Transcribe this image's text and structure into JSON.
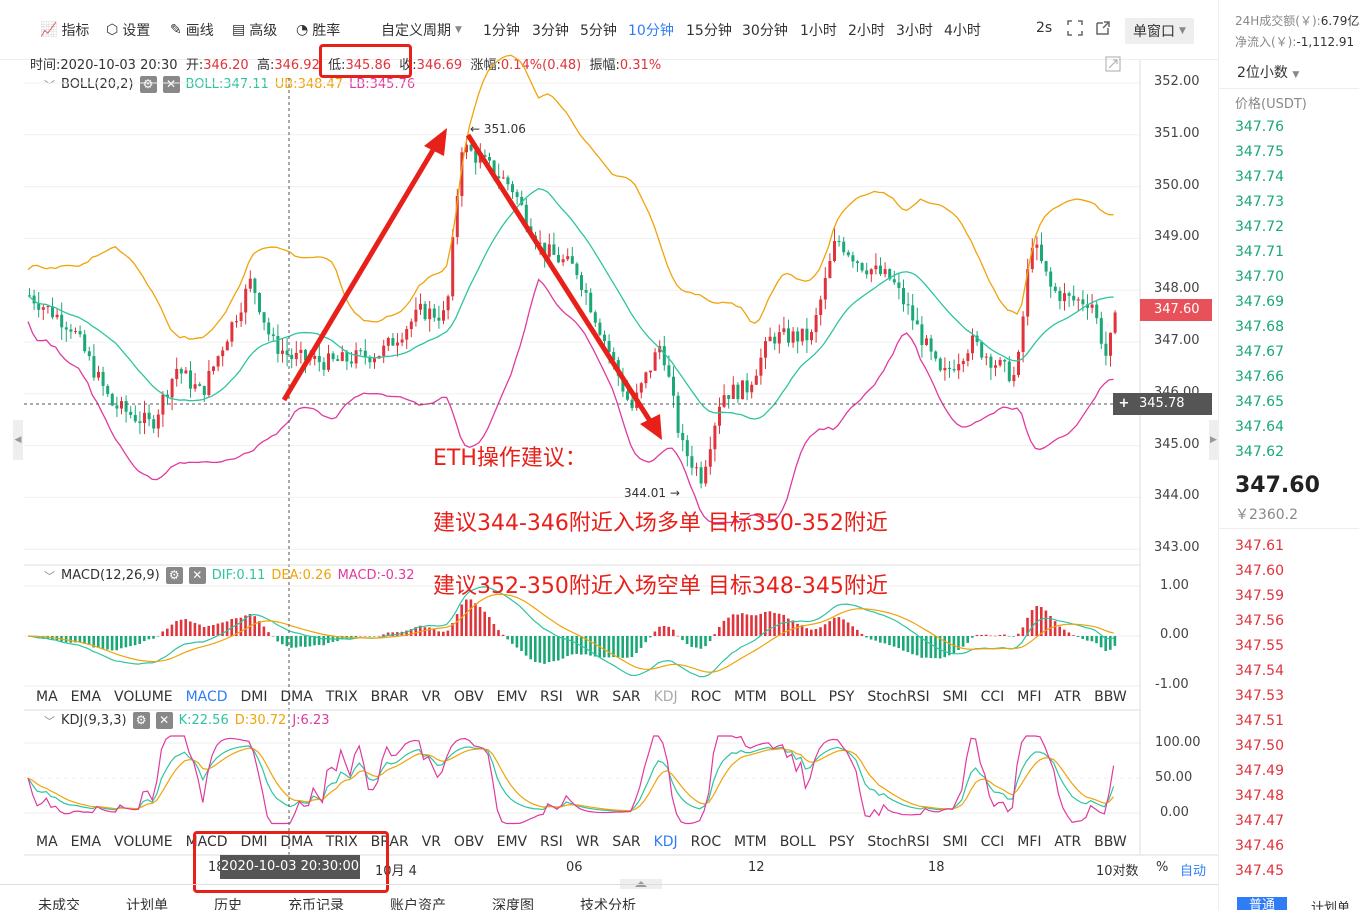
{
  "toolbar": {
    "indicator_label": "指标",
    "settings_label": "设置",
    "drawline_label": "画线",
    "advanced_label": "高级",
    "winrate_label": "胜率",
    "custom_period_label": "自定义周期",
    "periods": [
      "1分钟",
      "3分钟",
      "5分钟",
      "10分钟",
      "15分钟",
      "30分钟",
      "1小时",
      "2小时",
      "3小时",
      "4小时"
    ],
    "active_period": "10分钟",
    "refresh_label": "2s",
    "window_mode_label": "单窗口"
  },
  "info": {
    "time_label": "时间:",
    "time_value": "2020-10-03 20:30",
    "open_label": "开:",
    "open_value": "346.20",
    "high_label": "高:",
    "high_value": "346.92",
    "low_label": "低:",
    "low_value": "345.86",
    "close_label": "收:",
    "close_value": "346.69",
    "change_label": "涨幅:",
    "change_value": "0.14%(0.48)",
    "amplitude_label": "振幅:",
    "amplitude_value": "0.31%"
  },
  "boll": {
    "name": "BOLL(20,2)",
    "mid": "BOLL:347.11",
    "ub": "UB:348.47",
    "lb": "LB:345.76"
  },
  "macd": {
    "name": "MACD(12,26,9)",
    "dif": "DIF:0.11",
    "dea": "DEA:0.26",
    "macd": "MACD:-0.32"
  },
  "kdj": {
    "name": "KDJ(9,3,3)",
    "k": "K:22.56",
    "d": "D:30.72",
    "j": "J:6.23"
  },
  "indicator_tabs": [
    "MA",
    "EMA",
    "VOLUME",
    "MACD",
    "DMI",
    "DMA",
    "TRIX",
    "BRAR",
    "VR",
    "OBV",
    "EMV",
    "RSI",
    "WR",
    "SAR",
    "KDJ",
    "ROC",
    "MTM",
    "BOLL",
    "PSY",
    "StochRSI",
    "SMI",
    "CCI",
    "MFI",
    "ATR",
    "BBW"
  ],
  "price_axis": [
    "352.00",
    "351.00",
    "350.00",
    "349.00",
    "348.00",
    "347.00",
    "346.00",
    "345.00",
    "344.00",
    "343.00"
  ],
  "current_price_tag": "347.60",
  "cursor_price_tag": "345.78",
  "macd_axis": [
    "1.00",
    "0.00",
    "-1.00"
  ],
  "kdj_axis": [
    "100.00",
    "50.00",
    "0.00"
  ],
  "time_axis": {
    "labels": [
      "18",
      "10月 4",
      "06",
      "12",
      "18"
    ],
    "cursor_time": "2020-10-03 20:30:00",
    "log_label": "10对数",
    "percent_label": "%",
    "auto_label": "自动"
  },
  "chart_markers": {
    "high": "351.06",
    "low": "344.01"
  },
  "annotations": {
    "title": "ETH操作建议：",
    "long": "建议344-346附近入场多单    目标350-352附近",
    "short": "建议352-350附近入场空单    目标348-345附近"
  },
  "right_panel": {
    "volume_24h_label": "24H成交额(￥):",
    "volume_24h_value": "6.79亿",
    "net_inflow_label": "净流入(￥):",
    "net_inflow_value": "-1,112.91",
    "decimals": "2位小数",
    "price_header": "价格(USDT)",
    "asks": [
      "347.76",
      "347.75",
      "347.74",
      "347.73",
      "347.72",
      "347.71",
      "347.70",
      "347.69",
      "347.68",
      "347.67",
      "347.66",
      "347.65",
      "347.64",
      "347.62"
    ],
    "last_price": "347.60",
    "last_price_cny": "￥2360.2",
    "bids": [
      "347.61",
      "347.60",
      "347.59",
      "347.56",
      "347.55",
      "347.54",
      "347.53",
      "347.51",
      "347.50",
      "347.49",
      "347.48",
      "347.47",
      "347.46",
      "347.45"
    ],
    "buy_button": "普通",
    "plan_label": "计划单"
  },
  "bottom_tabs": [
    "未成交",
    "计划单",
    "历史",
    "充币记录",
    "账户资产",
    "深度图",
    "技术分析"
  ],
  "colors": {
    "up": "#e0333c",
    "down": "#1aa876",
    "boll_mid": "#2ec4a0",
    "boll_ub": "#f0a30a",
    "boll_lb": "#e03a9e",
    "annotation": "#e8201a",
    "accent": "#2f7df6"
  }
}
